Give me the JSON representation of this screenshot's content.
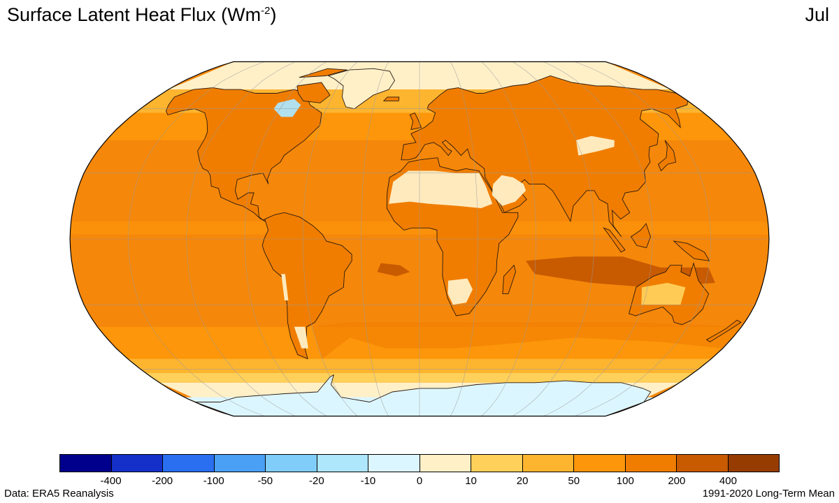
{
  "title": {
    "text": "Surface Latent Heat Flux (Wm",
    "superscript": "-2",
    "close": ")"
  },
  "month": "Jul",
  "source": "Data: ERA5 Reanalysis",
  "period": "1991-2020 Long-Term Mean",
  "legend": {
    "colors": [
      "#00008c",
      "#1430c8",
      "#2a6ff0",
      "#4aa0f5",
      "#7fcdf8",
      "#aee6fb",
      "#dcf6ff",
      "#fff0c8",
      "#ffd05a",
      "#fdb530",
      "#fd960a",
      "#f07d00",
      "#c85a00",
      "#963c00"
    ],
    "ticks": [
      "-400",
      "-200",
      "-100",
      "-50",
      "-20",
      "-10",
      "0",
      "10",
      "20",
      "50",
      "100",
      "200",
      "400"
    ]
  },
  "map": {
    "projection": "robinson",
    "ocean_color": "#f5870a",
    "land_color": "#f07d00",
    "coast_color": "#2a1a10"
  }
}
